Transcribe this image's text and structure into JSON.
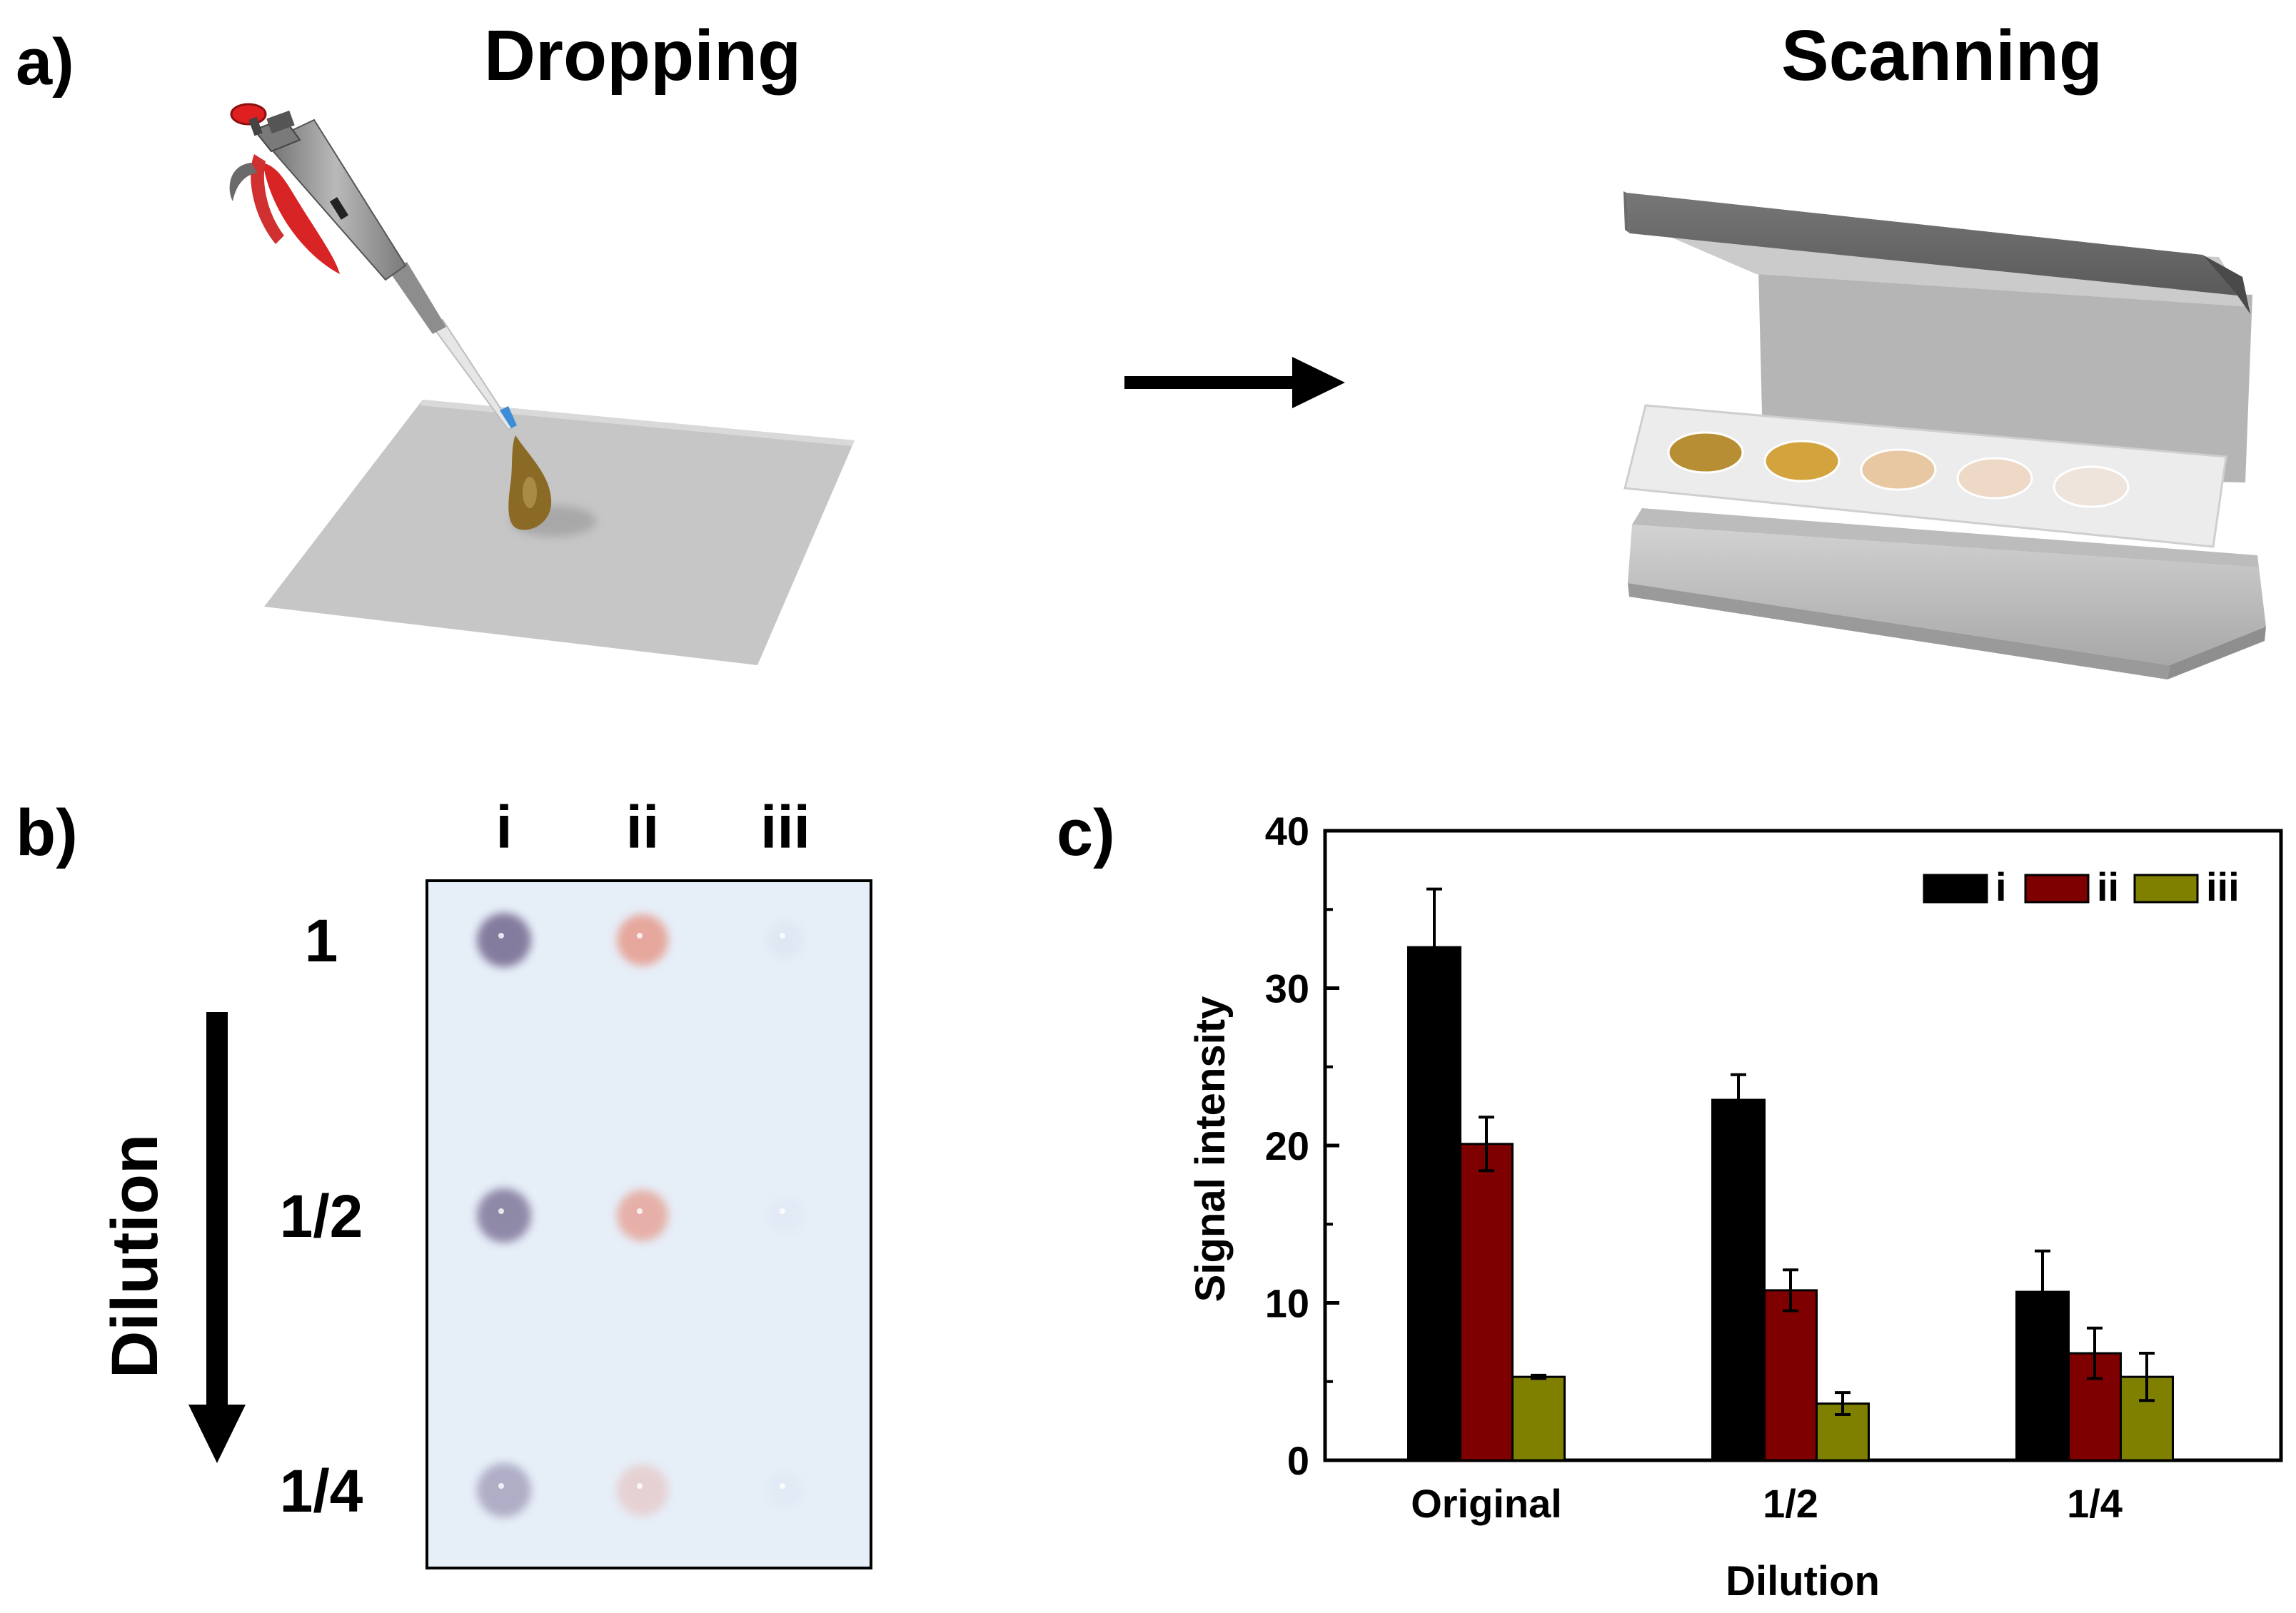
{
  "panel_a": {
    "label": "a)",
    "step_dropping": "Dropping",
    "step_scanning": "Scanning",
    "scanner_spot_colors": [
      "#b88e34",
      "#d3a43e",
      "#e8c8a3",
      "#eed8c6",
      "#efe4dc"
    ],
    "drop_color": "#8a6a24"
  },
  "panel_b": {
    "label": "b)",
    "columns": [
      "i",
      "ii",
      "iii"
    ],
    "rows": [
      "1",
      "1/2",
      "1/4"
    ],
    "arrow_label": "Dilution",
    "spot_colors": {
      "i": "#7a6f95",
      "ii": "#e6907e",
      "iii": "#c6cfe0"
    },
    "spot_intensity": [
      [
        0.9,
        0.75,
        0.2
      ],
      [
        0.8,
        0.65,
        0.12
      ],
      [
        0.5,
        0.3,
        0.12
      ]
    ],
    "membrane_color": "#e6eef8"
  },
  "chart_data": {
    "panel_label": "c)",
    "type": "bar",
    "categories": [
      "Original",
      "1/2",
      "1/4"
    ],
    "series": [
      {
        "name": "i",
        "color": "#000000",
        "values": [
          32.6,
          22.9,
          10.7
        ],
        "errors": [
          3.7,
          1.6,
          2.6
        ]
      },
      {
        "name": "ii",
        "color": "#7f0000",
        "values": [
          20.1,
          10.8,
          6.8
        ],
        "errors": [
          1.7,
          1.3,
          1.6
        ]
      },
      {
        "name": "iii",
        "color": "#7f7f00",
        "values": [
          5.3,
          3.6,
          5.3
        ],
        "errors": [
          0.1,
          0.7,
          1.5
        ]
      }
    ],
    "xlabel": "Dilution",
    "ylabel": "Signal intensity",
    "ylim": [
      0,
      40
    ],
    "yticks": [
      "0",
      "10",
      "20",
      "30",
      "40"
    ],
    "legend_position": "top-right",
    "grid": false
  }
}
